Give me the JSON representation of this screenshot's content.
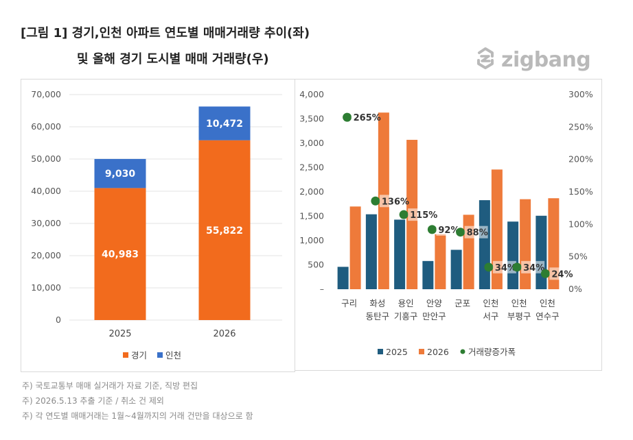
{
  "header": {
    "title_line1": "[그림 1] 경기,인천 아파트 연도별 매매거래량 추이(좌)",
    "title_line2": "및 올해 경기 도시별 매매 거래량(우)",
    "logo_text": "zigbang"
  },
  "notes": [
    "주) 국토교통부 매매 실거래가 자료 기준, 직방 편집",
    "주) 2026.5.13 추출 기준 / 취소 건 제외",
    "주) 각 연도별 매매거래는 1월~4월까지의 거래 건만을 대상으로 함"
  ],
  "chart_data": [
    {
      "type": "bar",
      "stacked": true,
      "categories": [
        "2025",
        "2026"
      ],
      "series": [
        {
          "name": "경기",
          "values": [
            40983,
            55822
          ],
          "labels": [
            "40,983",
            "55,822"
          ],
          "color": "#f26b1d"
        },
        {
          "name": "인천",
          "values": [
            9030,
            10472
          ],
          "labels": [
            "9,030",
            "10,472"
          ],
          "color": "#3a71c9"
        }
      ],
      "ylim": [
        0,
        70000
      ],
      "yticks": [
        0,
        10000,
        20000,
        30000,
        40000,
        50000,
        60000,
        70000
      ],
      "ytick_labels": [
        "0",
        "10,000",
        "20,000",
        "30,000",
        "40,000",
        "50,000",
        "60,000",
        "70,000"
      ],
      "grid": true,
      "legend": "bottom"
    },
    {
      "type": "bar",
      "categories": [
        {
          "line1": "구리",
          "line2": ""
        },
        {
          "line1": "화성",
          "line2": "동탄구"
        },
        {
          "line1": "용인",
          "line2": "기흥구"
        },
        {
          "line1": "안양",
          "line2": "만안구"
        },
        {
          "line1": "군포",
          "line2": ""
        },
        {
          "line1": "인천",
          "line2": "서구"
        },
        {
          "line1": "인천",
          "line2": "부평구"
        },
        {
          "line1": "인천",
          "line2": "연수구"
        }
      ],
      "series": [
        {
          "name": "2025",
          "values": [
            460,
            1540,
            1430,
            580,
            810,
            1830,
            1390,
            1510
          ],
          "color": "#1f5c7f",
          "axis": "left"
        },
        {
          "name": "2026",
          "values": [
            1700,
            3630,
            3070,
            1130,
            1530,
            2460,
            1850,
            1870
          ],
          "color": "#ee7a3a",
          "axis": "left"
        },
        {
          "name": "거래량증가폭",
          "type": "scatter",
          "values": [
            265,
            136,
            115,
            92,
            88,
            34,
            34,
            24
          ],
          "labels": [
            "265%",
            "136%",
            "115%",
            "92%",
            "88%",
            "34%",
            "34%",
            "24%"
          ],
          "color": "#2d7d32",
          "axis": "right"
        }
      ],
      "ylim": [
        0,
        4000
      ],
      "yticks": [
        0,
        500,
        1000,
        1500,
        2000,
        2500,
        3000,
        3500,
        4000
      ],
      "ytick_labels": [
        "–",
        "500",
        "1,000",
        "1,500",
        "2,000",
        "2,500",
        "3,000",
        "3,500",
        "4,000"
      ],
      "y2lim": [
        0,
        300
      ],
      "y2ticks": [
        0,
        50,
        100,
        150,
        200,
        250,
        300
      ],
      "y2tick_labels": [
        "0%",
        "50%",
        "100%",
        "150%",
        "200%",
        "250%",
        "300%"
      ],
      "grid": false,
      "legend": "bottom"
    }
  ]
}
